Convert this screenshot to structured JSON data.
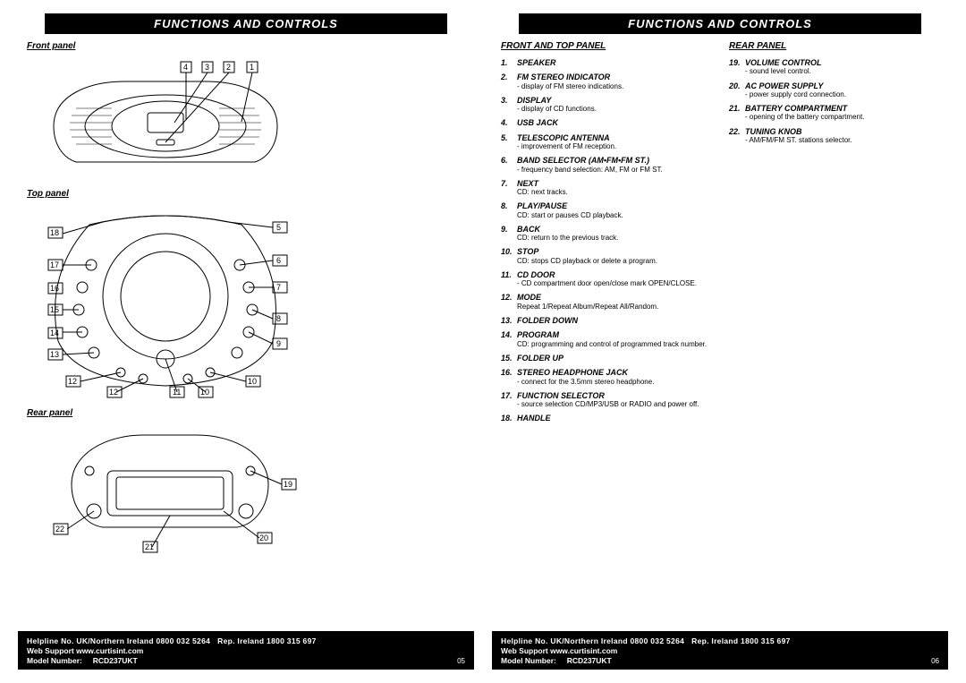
{
  "header": "FUNCTIONS AND CONTROLS",
  "leftPage": {
    "sections": {
      "front": "Front panel",
      "top": "Top panel",
      "rear": "Rear panel"
    },
    "frontCallouts": [
      "4",
      "3",
      "2",
      "1"
    ],
    "topCalloutsLeft": [
      "18",
      "17",
      "16",
      "15",
      "14",
      "13",
      "12"
    ],
    "topCalloutsRight": [
      "5",
      "6",
      "7",
      "8",
      "9",
      "10",
      "11"
    ],
    "rearCallouts": [
      "19",
      "20",
      "21",
      "22"
    ],
    "pageNum": "05"
  },
  "rightPage": {
    "col1Title": "FRONT AND TOP PANEL",
    "col2Title": "REAR PANEL",
    "col1": [
      {
        "n": "1.",
        "t": "SPEAKER",
        "d": ""
      },
      {
        "n": "2.",
        "t": "FM STEREO INDICATOR",
        "d": "- display of FM stereo indications."
      },
      {
        "n": "3.",
        "t": "DISPLAY",
        "d": "- display of CD functions."
      },
      {
        "n": "4.",
        "t": "USB JACK",
        "d": ""
      },
      {
        "n": "5.",
        "t": "TELESCOPIC ANTENNA",
        "d": "- improvement of FM reception."
      },
      {
        "n": "6.",
        "t": "BAND SELECTOR (AM•FM•FM ST.)",
        "d": "- frequency band selection: AM, FM or FM ST."
      },
      {
        "n": "7.",
        "t": "NEXT",
        "d": "CD: next tracks."
      },
      {
        "n": "8.",
        "t": "PLAY/PAUSE",
        "d": "CD: start or pauses CD playback."
      },
      {
        "n": "9.",
        "t": "BACK",
        "d": "CD: return to the previous track."
      },
      {
        "n": "10.",
        "t": "STOP",
        "d": "CD: stops CD playback or delete a program."
      },
      {
        "n": "11.",
        "t": "CD DOOR",
        "d": "- CD compartment door open/close mark OPEN/CLOSE."
      },
      {
        "n": "12.",
        "t": "MODE",
        "d": "Repeat 1/Repeat Album/Repeat All/Random."
      },
      {
        "n": "13.",
        "t": "FOLDER DOWN",
        "d": ""
      },
      {
        "n": "14.",
        "t": "PROGRAM",
        "d": "CD: programming and control of programmed track number."
      },
      {
        "n": "15.",
        "t": "FOLDER UP",
        "d": ""
      },
      {
        "n": "16.",
        "t": "STEREO HEADPHONE JACK",
        "d": "- connect for the 3.5mm stereo headphone."
      },
      {
        "n": "17.",
        "t": "FUNCTION SELECTOR",
        "d": "- source selection CD/MP3/USB or RADIO and power off."
      },
      {
        "n": "18.",
        "t": "HANDLE",
        "d": ""
      }
    ],
    "col2": [
      {
        "n": "19.",
        "t": "VOLUME CONTROL",
        "d": "- sound level control."
      },
      {
        "n": "20.",
        "t": "AC POWER SUPPLY",
        "d": "- power supply cord connection."
      },
      {
        "n": "21.",
        "t": "BATTERY COMPARTMENT",
        "d": "- opening of the battery compartment."
      },
      {
        "n": "22.",
        "t": "TUNING KNOB",
        "d": "- AM/FM/FM ST. stations selector."
      }
    ],
    "pageNum": "06"
  },
  "footer": {
    "line1a": "Helpline No. UK/Northern Ireland 0800 032 5264",
    "line1b": "Rep. Ireland  1800 315 697",
    "line2": "Web Support www.curtisint.com",
    "line3a": "Model Number:",
    "line3b": "RCD237UKT"
  }
}
